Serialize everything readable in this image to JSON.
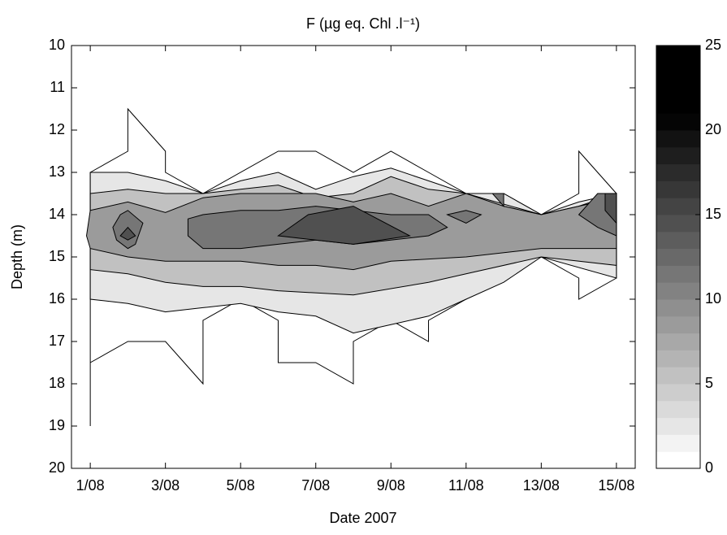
{
  "chart_data": {
    "type": "contour",
    "title": "F (µg eq. Chl .l⁻¹)",
    "x_label": "Date 2007",
    "y_label": "Depth (m)",
    "xlim": [
      0.5,
      15.5
    ],
    "xticks": [
      {
        "value": 1,
        "label": "1/08"
      },
      {
        "value": 3,
        "label": "3/08"
      },
      {
        "value": 5,
        "label": "5/08"
      },
      {
        "value": 7,
        "label": "7/08"
      },
      {
        "value": 9,
        "label": "9/08"
      },
      {
        "value": 11,
        "label": "11/08"
      },
      {
        "value": 13,
        "label": "13/08"
      },
      {
        "value": 15,
        "label": "15/08"
      }
    ],
    "ylim": [
      20,
      10
    ],
    "yticks": [
      10,
      11,
      12,
      13,
      14,
      15,
      16,
      17,
      18,
      19,
      20
    ],
    "clim": [
      0,
      25
    ],
    "cticks": [
      0,
      5,
      10,
      15,
      20,
      25
    ],
    "regions": [
      {
        "level": 0,
        "points": [
          [
            1,
            13
          ],
          [
            2,
            12.5
          ],
          [
            2,
            11.5
          ],
          [
            3,
            12.5
          ],
          [
            3,
            13
          ],
          [
            4,
            13.5
          ],
          [
            6,
            12.5
          ],
          [
            7,
            12.5
          ],
          [
            8,
            13
          ],
          [
            9,
            12.5
          ],
          [
            10,
            13
          ],
          [
            11,
            13.5
          ],
          [
            12,
            13.5
          ],
          [
            13,
            14
          ],
          [
            14,
            13.5
          ],
          [
            14,
            12.5
          ],
          [
            15,
            13.5
          ],
          [
            15,
            15.5
          ],
          [
            14,
            16
          ],
          [
            14,
            15.5
          ],
          [
            13,
            15
          ],
          [
            11,
            16
          ],
          [
            10,
            16.5
          ],
          [
            10,
            17
          ],
          [
            9,
            16.5
          ],
          [
            8,
            17
          ],
          [
            8,
            18
          ],
          [
            7,
            17.5
          ],
          [
            6,
            17.5
          ],
          [
            6,
            16.5
          ],
          [
            5,
            16
          ],
          [
            4,
            16.5
          ],
          [
            4,
            18
          ],
          [
            3,
            17
          ],
          [
            2,
            17
          ],
          [
            1,
            17.5
          ],
          [
            1,
            19
          ]
        ]
      },
      {
        "level": 2,
        "points": [
          [
            1,
            13
          ],
          [
            2,
            13
          ],
          [
            3,
            13.2
          ],
          [
            4,
            13.5
          ],
          [
            5,
            13.2
          ],
          [
            6,
            13
          ],
          [
            7,
            13.4
          ],
          [
            8,
            13.1
          ],
          [
            9,
            12.9
          ],
          [
            10,
            13.2
          ],
          [
            11,
            13.5
          ],
          [
            12,
            13.5
          ],
          [
            13,
            14
          ],
          [
            14,
            13.7
          ],
          [
            15,
            13.5
          ],
          [
            15,
            15.5
          ],
          [
            13,
            15
          ],
          [
            12,
            15.6
          ],
          [
            11,
            16
          ],
          [
            10,
            16.4
          ],
          [
            9,
            16.6
          ],
          [
            8,
            16.8
          ],
          [
            7,
            16.4
          ],
          [
            6,
            16.3
          ],
          [
            5,
            16.1
          ],
          [
            4,
            16.2
          ],
          [
            3,
            16.3
          ],
          [
            2,
            16.1
          ],
          [
            1,
            16
          ]
        ]
      },
      {
        "level": 5,
        "points": [
          [
            1,
            13.5
          ],
          [
            2,
            13.4
          ],
          [
            3,
            13.5
          ],
          [
            4,
            13.5
          ],
          [
            5,
            13.4
          ],
          [
            6,
            13.3
          ],
          [
            7,
            13.6
          ],
          [
            8,
            13.5
          ],
          [
            9,
            13.1
          ],
          [
            10,
            13.4
          ],
          [
            11,
            13.5
          ],
          [
            13,
            14
          ],
          [
            14,
            13.8
          ],
          [
            15,
            13.5
          ],
          [
            15,
            15.2
          ],
          [
            13,
            15
          ],
          [
            11,
            15.4
          ],
          [
            10,
            15.6
          ],
          [
            8,
            15.9
          ],
          [
            6,
            15.8
          ],
          [
            5,
            15.7
          ],
          [
            4,
            15.7
          ],
          [
            3,
            15.6
          ],
          [
            2,
            15.4
          ],
          [
            1,
            15.3
          ]
        ]
      },
      {
        "level": 8,
        "points": [
          [
            1,
            13.9
          ],
          [
            2,
            13.7
          ],
          [
            3,
            13.95
          ],
          [
            4,
            13.6
          ],
          [
            5,
            13.5
          ],
          [
            6,
            13.5
          ],
          [
            7,
            13.5
          ],
          [
            8,
            13.7
          ],
          [
            9,
            13.5
          ],
          [
            10,
            13.8
          ],
          [
            11,
            13.5
          ],
          [
            12,
            13.8
          ],
          [
            13,
            14
          ],
          [
            14,
            13.8
          ],
          [
            15,
            13.6
          ],
          [
            15,
            14.8
          ],
          [
            13,
            14.8
          ],
          [
            11,
            15
          ],
          [
            9,
            15.1
          ],
          [
            8,
            15.3
          ],
          [
            7,
            15.2
          ],
          [
            6,
            15.2
          ],
          [
            5,
            15.1
          ],
          [
            4,
            15.1
          ],
          [
            3,
            15.1
          ],
          [
            2,
            15
          ],
          [
            1,
            14.8
          ],
          [
            0.9,
            14.5
          ]
        ]
      },
      {
        "level": 11,
        "points": [
          [
            3.6,
            14.1
          ],
          [
            4,
            14
          ],
          [
            5,
            13.9
          ],
          [
            6,
            13.9
          ],
          [
            7,
            13.8
          ],
          [
            8,
            13.9
          ],
          [
            9,
            14
          ],
          [
            10,
            14
          ],
          [
            10.5,
            14.3
          ],
          [
            10,
            14.5
          ],
          [
            9,
            14.6
          ],
          [
            8,
            14.7
          ],
          [
            7,
            14.6
          ],
          [
            6,
            14.7
          ],
          [
            5,
            14.8
          ],
          [
            4,
            14.8
          ],
          [
            3.6,
            14.5
          ]
        ]
      },
      {
        "level": 11,
        "points": [
          [
            1.6,
            14.3
          ],
          [
            1.8,
            14
          ],
          [
            2,
            13.9
          ],
          [
            2.4,
            14.2
          ],
          [
            2.2,
            14.7
          ],
          [
            2,
            14.8
          ],
          [
            1.7,
            14.6
          ]
        ]
      },
      {
        "level": 11,
        "points": [
          [
            14,
            14
          ],
          [
            14.5,
            13.5
          ],
          [
            15,
            13.5
          ],
          [
            15,
            14.5
          ],
          [
            14.5,
            14.3
          ]
        ]
      },
      {
        "level": 11,
        "points": [
          [
            10.5,
            14
          ],
          [
            11,
            13.9
          ],
          [
            11.4,
            14
          ],
          [
            11,
            14.2
          ]
        ]
      },
      {
        "level": 11,
        "points": [
          [
            11.7,
            13.5
          ],
          [
            12,
            13.5
          ],
          [
            12,
            13.8
          ]
        ]
      },
      {
        "level": 14,
        "points": [
          [
            6,
            14.5
          ],
          [
            6.8,
            14
          ],
          [
            8,
            13.8
          ],
          [
            9.5,
            14.5
          ],
          [
            8,
            14.7
          ],
          [
            7,
            14.6
          ]
        ]
      },
      {
        "level": 14,
        "points": [
          [
            1.8,
            14.5
          ],
          [
            2,
            14.3
          ],
          [
            2.2,
            14.5
          ],
          [
            2,
            14.6
          ]
        ]
      },
      {
        "level": 14,
        "points": [
          [
            14.7,
            13.5
          ],
          [
            15,
            13.5
          ],
          [
            15,
            14.2
          ],
          [
            14.7,
            13.9
          ]
        ]
      }
    ]
  }
}
